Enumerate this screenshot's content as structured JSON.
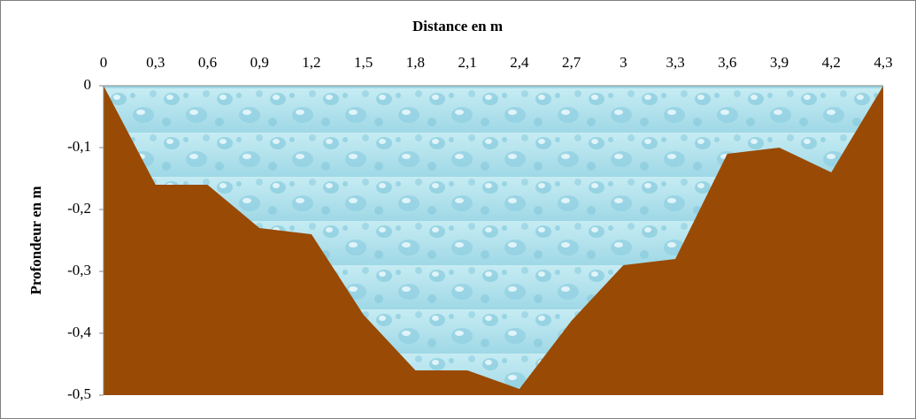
{
  "chart_data": {
    "type": "area",
    "title": "Distance en m",
    "y_label": "Profondeur en m",
    "categories": [
      "0",
      "0,3",
      "0,6",
      "0,9",
      "1,2",
      "1,5",
      "1,8",
      "2,1",
      "2,4",
      "2,7",
      "3",
      "3,3",
      "3,6",
      "3,9",
      "4,2",
      "4,3"
    ],
    "values": [
      0,
      -0.16,
      -0.16,
      -0.23,
      -0.24,
      -0.37,
      -0.46,
      -0.46,
      -0.49,
      -0.38,
      -0.29,
      -0.28,
      -0.11,
      -0.1,
      -0.14,
      0
    ],
    "color": "#994a04",
    "ylim": [
      -0.5,
      0
    ],
    "yticks": [
      {
        "value": -0.5,
        "label": "-0,5"
      },
      {
        "value": -0.4,
        "label": "-0,4"
      },
      {
        "value": -0.3,
        "label": "-0,3"
      },
      {
        "value": -0.2,
        "label": "-0,2"
      },
      {
        "value": -0.1,
        "label": "-0,1"
      },
      0
    ]
  }
}
